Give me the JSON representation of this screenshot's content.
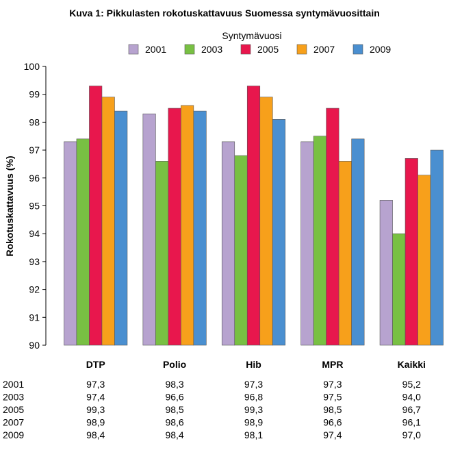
{
  "chart_data": {
    "type": "bar",
    "title": "Kuva 1: Pikkulasten rokotuskattavuus Suomessa syntymävuosittain",
    "legend_title": "Syntymävuosi",
    "legend_position": "top",
    "xlabel": "",
    "ylabel": "Rokotuskattavuus (%)",
    "ylim": [
      90,
      100
    ],
    "yticks": [
      "90",
      "91",
      "92",
      "93",
      "94",
      "95",
      "96",
      "97",
      "98",
      "99",
      "100"
    ],
    "grid": false,
    "categories": [
      "DTP",
      "Polio",
      "Hib",
      "MPR",
      "Kaikki"
    ],
    "series": [
      {
        "name": "2001",
        "color": "#b7a3cf",
        "values": [
          97.3,
          98.3,
          97.3,
          97.3,
          95.2
        ],
        "labels": [
          "97,3",
          "98,3",
          "97,3",
          "97,3",
          "95,2"
        ]
      },
      {
        "name": "2003",
        "color": "#78c043",
        "values": [
          97.4,
          96.6,
          96.8,
          97.5,
          94.0
        ],
        "labels": [
          "97,4",
          "96,6",
          "96,8",
          "97,5",
          "94,0"
        ]
      },
      {
        "name": "2005",
        "color": "#e8174d",
        "values": [
          99.3,
          98.5,
          99.3,
          98.5,
          96.7
        ],
        "labels": [
          "99,3",
          "98,5",
          "99,3",
          "98,5",
          "96,7"
        ]
      },
      {
        "name": "2007",
        "color": "#f7a01b",
        "values": [
          98.9,
          98.6,
          98.9,
          96.6,
          96.1
        ],
        "labels": [
          "98,9",
          "98,6",
          "98,9",
          "96,6",
          "96,1"
        ]
      },
      {
        "name": "2009",
        "color": "#4a8fd0",
        "values": [
          98.4,
          98.4,
          98.1,
          97.4,
          97.0
        ],
        "labels": [
          "98,4",
          "98,4",
          "98,1",
          "97,4",
          "97,0"
        ]
      }
    ]
  }
}
